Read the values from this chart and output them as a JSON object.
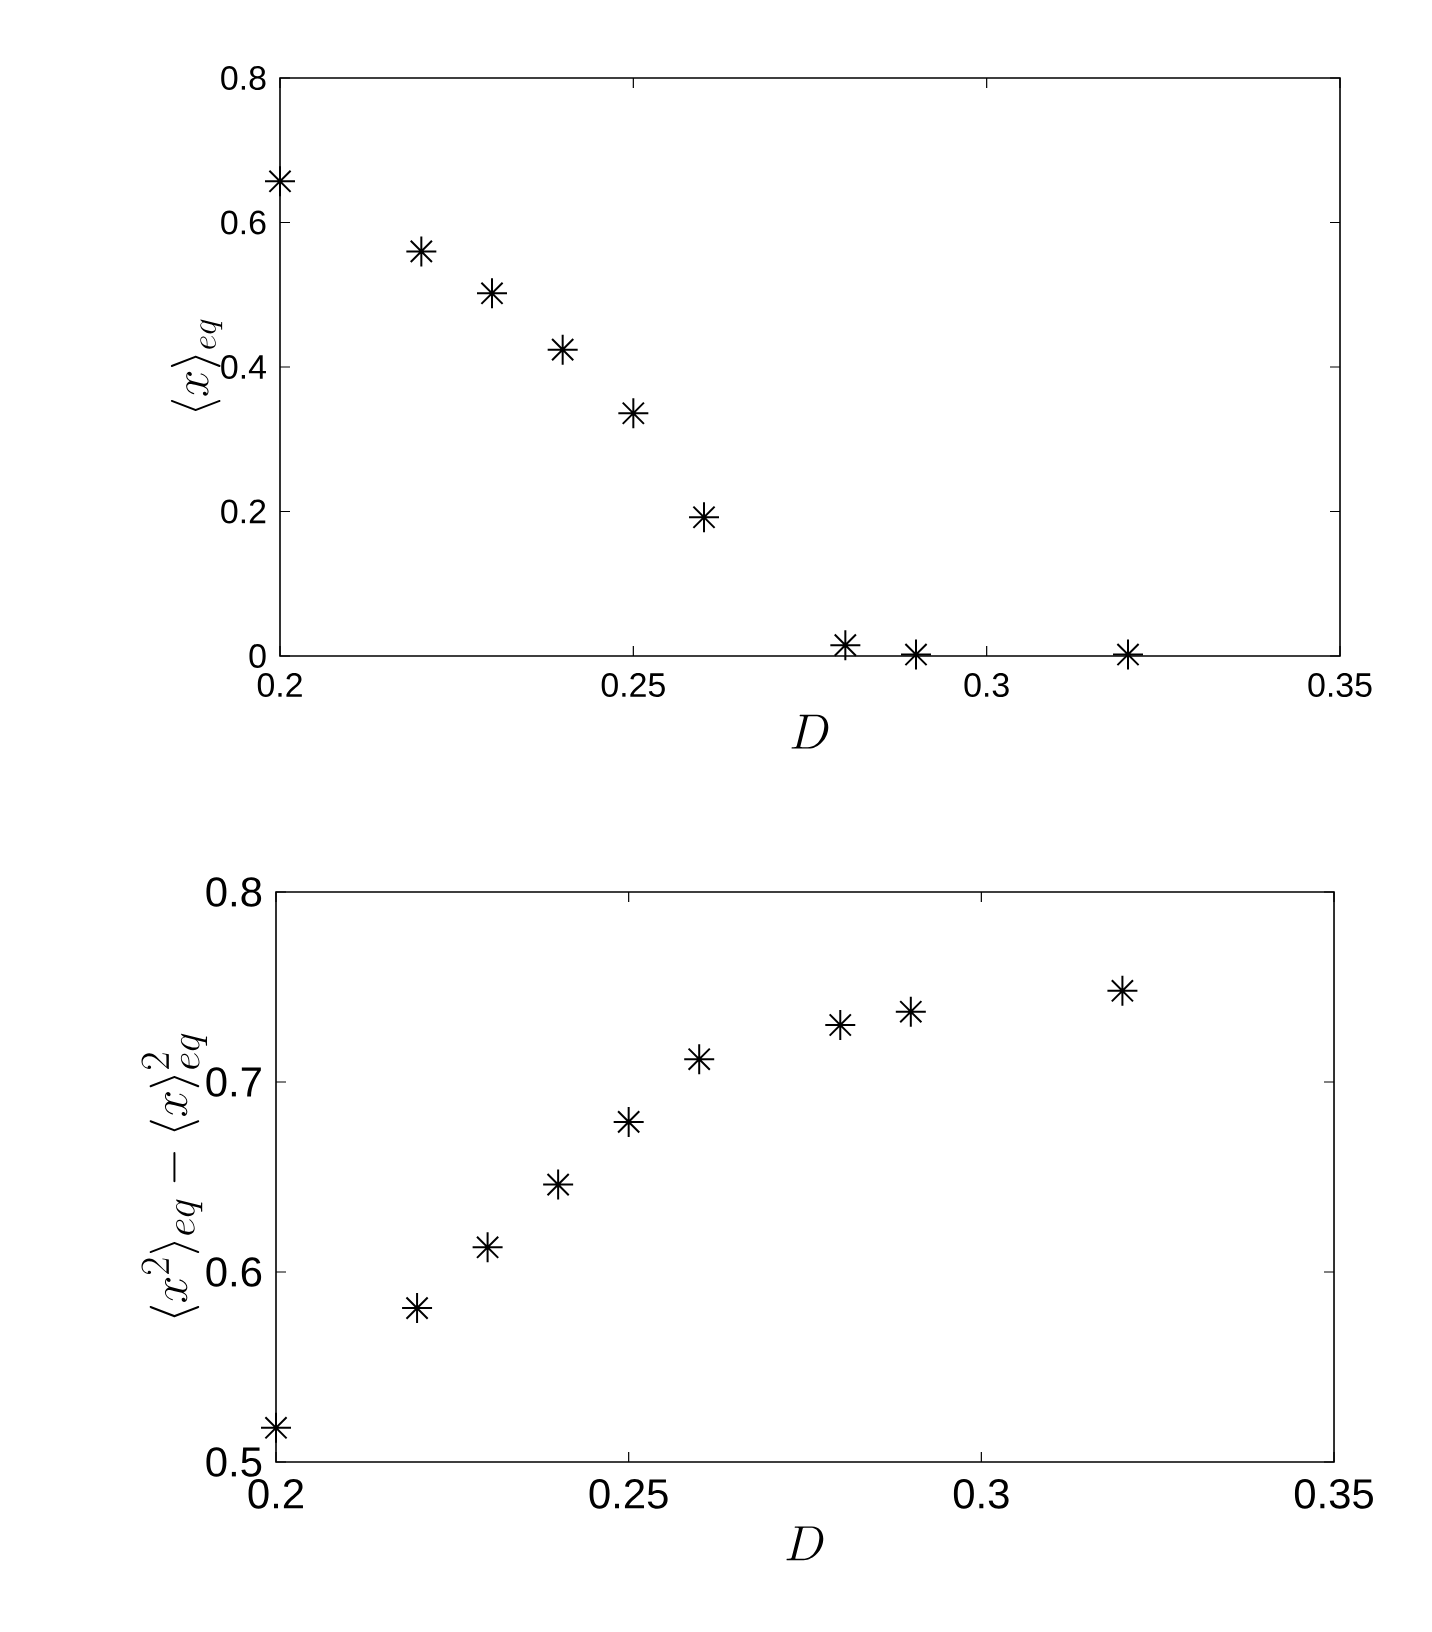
{
  "chart_data": [
    {
      "type": "scatter",
      "xlabel": "D",
      "ylabel": "\\langle x\\rangle_{eq}",
      "x": [
        0.2,
        0.22,
        0.23,
        0.24,
        0.25,
        0.26,
        0.28,
        0.29,
        0.32
      ],
      "values": [
        0.657,
        0.56,
        0.502,
        0.424,
        0.336,
        0.192,
        0.015,
        0.002,
        0.002
      ],
      "color": "#000000",
      "marker": "cross",
      "xlim": [
        0.2,
        0.35
      ],
      "ylim": [
        0,
        0.8
      ],
      "xticks": [
        0.2,
        0.25,
        0.3,
        0.35
      ],
      "yticks": [
        0,
        0.2,
        0.4,
        0.6,
        0.8
      ]
    },
    {
      "type": "scatter",
      "xlabel": "D",
      "ylabel": "\\langle x^2\\rangle_{eq}-\\langle x\\rangle_{eq}^2",
      "x": [
        0.2,
        0.22,
        0.23,
        0.24,
        0.25,
        0.26,
        0.28,
        0.29,
        0.32
      ],
      "values": [
        0.518,
        0.581,
        0.613,
        0.646,
        0.679,
        0.712,
        0.73,
        0.737,
        0.748
      ],
      "color": "#000000",
      "marker": "cross",
      "xlim": [
        0.2,
        0.35
      ],
      "ylim": [
        0.5,
        0.8
      ],
      "xticks": [
        0.2,
        0.25,
        0.3,
        0.35
      ],
      "yticks": [
        0.5,
        0.6,
        0.7,
        0.8
      ]
    }
  ]
}
